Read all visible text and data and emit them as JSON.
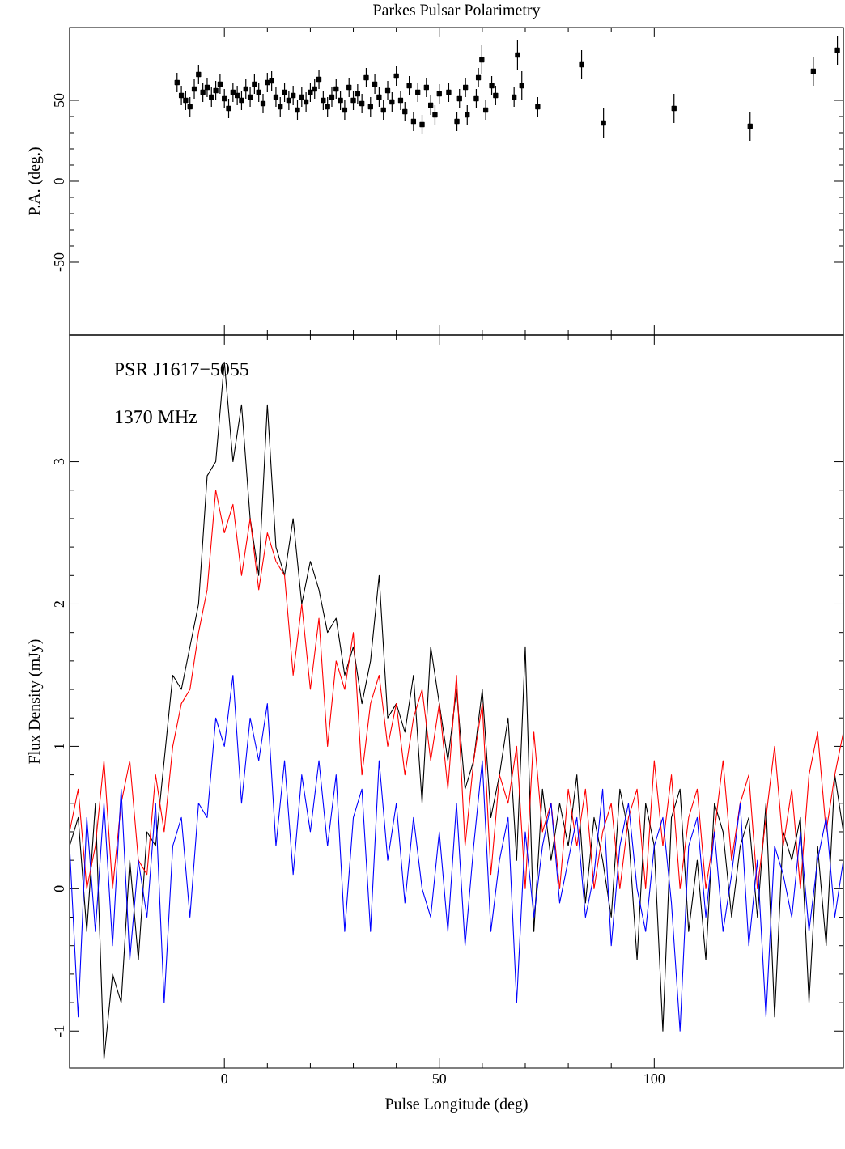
{
  "chart_data": [
    {
      "type": "scatter",
      "title": "Parkes Pulsar Polarimetry",
      "ylabel": "P.A. (deg.)",
      "xlim": [
        -36,
        144
      ],
      "ylim": [
        -95,
        95
      ],
      "xticks": [
        0,
        50,
        100
      ],
      "yticks": [
        -50,
        0,
        50
      ],
      "tick_labels": "y",
      "marker": "square",
      "color": "#000000",
      "x": [
        -11,
        -10,
        -9,
        -8,
        -7,
        -6,
        -5,
        -4,
        -3,
        -2,
        -1,
        0,
        1,
        2,
        3,
        4,
        5,
        6,
        7,
        8,
        9,
        10,
        11,
        12,
        13,
        14,
        15,
        16,
        17,
        18,
        19,
        20,
        21,
        22,
        23,
        24,
        25,
        26,
        27,
        28,
        29,
        30,
        31,
        32,
        33,
        34,
        35,
        36,
        37,
        38,
        39,
        40,
        41,
        42,
        43,
        44,
        45,
        46,
        47,
        48,
        49,
        50,
        52.2,
        54.1,
        54.7,
        56.1,
        56.5,
        58.6,
        59.1,
        59.9,
        60.8,
        62.2,
        63.1,
        67.4,
        68.2,
        69.2,
        72.9,
        83.1,
        88.2,
        104.6,
        122.3,
        137,
        142.6
      ],
      "values": [
        61,
        53,
        50,
        46,
        57,
        66,
        55,
        58,
        52,
        56,
        60,
        51,
        45,
        55,
        53,
        50,
        57,
        52,
        60,
        55,
        48,
        61,
        62,
        52,
        46,
        55,
        50,
        53,
        44,
        52,
        49,
        55,
        57,
        63,
        50,
        46,
        52,
        57,
        50,
        44,
        58,
        50,
        54,
        48,
        64,
        46,
        60,
        52,
        44,
        56,
        49,
        65,
        50,
        43,
        59,
        37,
        55,
        35,
        58,
        47,
        41,
        54,
        55,
        37,
        51,
        58,
        41,
        51,
        64,
        75,
        44,
        59,
        53,
        52,
        78,
        59,
        46,
        72,
        36,
        45,
        34,
        68,
        81
      ],
      "errors": [
        6,
        6,
        6,
        6,
        6,
        6,
        6,
        6,
        6,
        6,
        6,
        6,
        6,
        6,
        6,
        6,
        6,
        6,
        6,
        6,
        6,
        6,
        6,
        6,
        6,
        6,
        6,
        6,
        6,
        6,
        6,
        6,
        6,
        6,
        6,
        6,
        6,
        6,
        6,
        6,
        6,
        6,
        6,
        6,
        6,
        6,
        6,
        6,
        6,
        6,
        6,
        6,
        6,
        6,
        6,
        6,
        6,
        6,
        6,
        6,
        6,
        6,
        6,
        6,
        6,
        6,
        6,
        6,
        6,
        9,
        6,
        6,
        6,
        6,
        9,
        9,
        6,
        9,
        9,
        9,
        9,
        9,
        9
      ]
    },
    {
      "type": "line",
      "xlabel": "Pulse Longitude (deg)",
      "ylabel": "Flux Density (mJy)",
      "xlim": [
        -36,
        144
      ],
      "ylim": [
        -1.26,
        3.89
      ],
      "xticks": [
        0,
        50,
        100
      ],
      "yticks": [
        -1,
        0,
        1,
        2,
        3
      ],
      "annotations": [
        "PSR J1617−5055",
        "1370 MHz"
      ],
      "x": [
        -36,
        -34,
        -32,
        -30,
        -28,
        -26,
        -24,
        -22,
        -20,
        -18,
        -16,
        -14,
        -12,
        -10,
        -8,
        -6,
        -4,
        -2,
        0,
        2,
        4,
        6,
        8,
        10,
        12,
        14,
        16,
        18,
        20,
        22,
        24,
        26,
        28,
        30,
        32,
        34,
        36,
        38,
        40,
        42,
        44,
        46,
        48,
        50,
        52,
        54,
        56,
        58,
        60,
        62,
        64,
        66,
        68,
        70,
        72,
        74,
        76,
        78,
        80,
        82,
        84,
        86,
        88,
        90,
        92,
        94,
        96,
        98,
        100,
        102,
        104,
        106,
        108,
        110,
        112,
        114,
        116,
        118,
        120,
        122,
        124,
        126,
        128,
        130,
        132,
        134,
        136,
        138,
        140,
        142,
        144
      ],
      "series": [
        {
          "color": "#000000",
          "values": [
            0.3,
            0.5,
            -0.3,
            0.6,
            -1.2,
            -0.6,
            -0.8,
            0.2,
            -0.5,
            0.4,
            0.3,
            0.9,
            1.5,
            1.4,
            1.7,
            2.0,
            2.9,
            3.0,
            3.7,
            3.0,
            3.4,
            2.6,
            2.2,
            3.4,
            2.4,
            2.2,
            2.6,
            2.0,
            2.3,
            2.1,
            1.8,
            1.9,
            1.5,
            1.7,
            1.3,
            1.6,
            2.2,
            1.2,
            1.3,
            1.1,
            1.5,
            0.6,
            1.7,
            1.3,
            0.9,
            1.4,
            0.7,
            0.9,
            1.4,
            0.5,
            0.8,
            1.2,
            0.2,
            1.7,
            -0.3,
            0.7,
            0.2,
            0.6,
            0.3,
            0.8,
            -0.1,
            0.5,
            0.2,
            -0.2,
            0.7,
            0.4,
            -0.5,
            0.6,
            0.3,
            -1.0,
            0.5,
            0.7,
            -0.3,
            0.2,
            -0.5,
            0.6,
            0.4,
            -0.2,
            0.3,
            0.5,
            -0.2,
            0.6,
            -0.9,
            0.4,
            0.2,
            0.5,
            -0.8,
            0.3,
            -0.4,
            0.8,
            0.4
          ]
        },
        {
          "color": "#ff0000",
          "values": [
            0.4,
            0.7,
            0,
            0.3,
            0.9,
            0,
            0.6,
            0.9,
            0.2,
            0.1,
            0.8,
            0.4,
            1.0,
            1.3,
            1.4,
            1.8,
            2.1,
            2.8,
            2.5,
            2.7,
            2.2,
            2.6,
            2.1,
            2.5,
            2.3,
            2.2,
            1.5,
            2.0,
            1.4,
            1.9,
            1.0,
            1.6,
            1.4,
            1.8,
            0.8,
            1.3,
            1.5,
            1.0,
            1.3,
            0.8,
            1.2,
            1.4,
            0.9,
            1.3,
            0.7,
            1.5,
            0.3,
            0.9,
            1.3,
            0.1,
            0.8,
            0.6,
            1.0,
            0,
            1.1,
            0.4,
            0.6,
            0,
            0.7,
            0.3,
            0.7,
            0,
            0.4,
            0.6,
            0,
            0.5,
            0.7,
            0,
            0.9,
            0.3,
            0.8,
            0,
            0.5,
            0.7,
            0,
            0.4,
            0.9,
            0.2,
            0.6,
            0.8,
            0,
            0.5,
            1.0,
            0.3,
            0.7,
            0,
            0.8,
            1.1,
            0.4,
            0.8,
            1.1
          ]
        },
        {
          "color": "#0000ff",
          "values": [
            0.3,
            -0.9,
            0.5,
            -0.3,
            0.6,
            -0.4,
            0.7,
            -0.5,
            0.2,
            -0.2,
            0.6,
            -0.8,
            0.3,
            0.5,
            -0.2,
            0.6,
            0.5,
            1.2,
            1.0,
            1.5,
            0.6,
            1.2,
            0.9,
            1.3,
            0.3,
            0.9,
            0.1,
            0.8,
            0.4,
            0.9,
            0.3,
            0.8,
            -0.3,
            0.5,
            0.7,
            -0.3,
            0.9,
            0.2,
            0.6,
            -0.1,
            0.5,
            0,
            -0.2,
            0.4,
            -0.3,
            0.6,
            -0.4,
            0.3,
            0.9,
            -0.3,
            0.2,
            0.5,
            -0.8,
            0.4,
            -0.2,
            0.3,
            0.6,
            -0.1,
            0.2,
            0.5,
            -0.2,
            0.1,
            0.7,
            -0.4,
            0.3,
            0.6,
            0,
            -0.3,
            0.3,
            0.5,
            -0.1,
            -1.0,
            0.3,
            0.5,
            -0.2,
            0.4,
            -0.3,
            0.1,
            0.6,
            -0.4,
            0.2,
            -0.9,
            0.3,
            0.1,
            -0.2,
            0.4,
            -0.3,
            0.2,
            0.5,
            -0.2,
            0.2
          ]
        }
      ]
    }
  ]
}
